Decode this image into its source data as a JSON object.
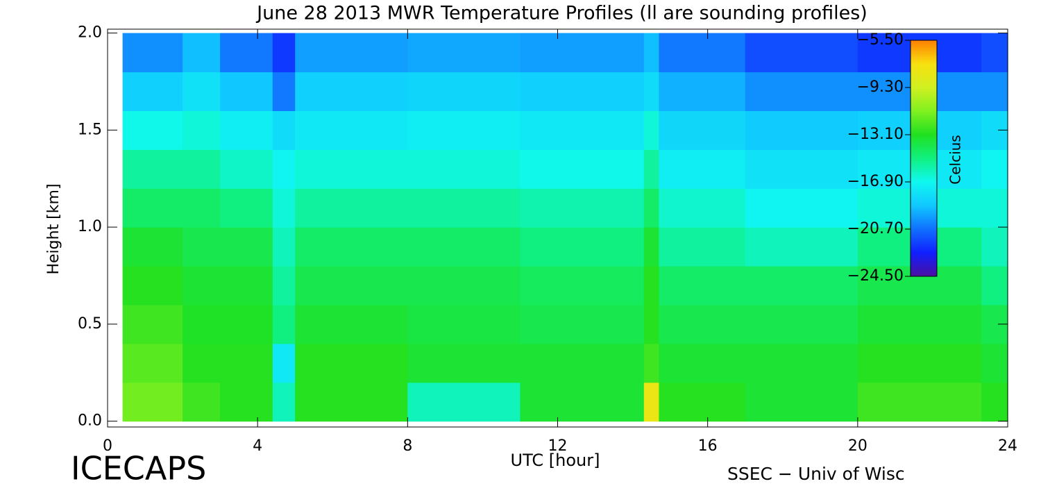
{
  "chart_data": {
    "type": "heatmap",
    "title": "June 28 2013 MWR Temperature Profiles (ll are sounding profiles)",
    "xlabel": "UTC [hour]",
    "ylabel": "Height [km]",
    "colorbar_label": "Celcius",
    "footer_left": "ICECAPS",
    "footer_right": "SSEC − Univ of Wisc",
    "xlim": [
      0,
      24
    ],
    "xticks": [
      0,
      4,
      8,
      12,
      16,
      20,
      24
    ],
    "ylim": [
      -0.03,
      2.02
    ],
    "yticks": [
      {
        "value": 0,
        "label": "0.0"
      },
      {
        "value": 0.5,
        "label": "0.5"
      },
      {
        "value": 1,
        "label": "1.0"
      },
      {
        "value": 1.5,
        "label": "1.5"
      },
      {
        "value": 2,
        "label": "2.0"
      }
    ],
    "zlim": [
      -24.5,
      -5.5
    ],
    "zticks": [
      {
        "value": -5.5,
        "label": "−5.50"
      },
      {
        "value": -9.3,
        "label": "−9.30"
      },
      {
        "value": -13.1,
        "label": "−13.10"
      },
      {
        "value": -16.9,
        "label": "−16.90"
      },
      {
        "value": -20.7,
        "label": "−20.70"
      },
      {
        "value": -24.5,
        "label": "−24.50"
      }
    ],
    "colorscale": [
      [
        -24.5,
        "#4b0fa0"
      ],
      [
        -22.6,
        "#1020ff"
      ],
      [
        -20.7,
        "#1070ff"
      ],
      [
        -18.8,
        "#10c8ff"
      ],
      [
        -16.9,
        "#10f8f0"
      ],
      [
        -15.0,
        "#10f080"
      ],
      [
        -13.1,
        "#20e020"
      ],
      [
        -11.2,
        "#80f020"
      ],
      [
        -9.3,
        "#d0f020"
      ],
      [
        -7.4,
        "#f8e010"
      ],
      [
        -5.5,
        "#ff8000"
      ]
    ],
    "xbins": [
      0.4,
      2,
      3,
      4.4,
      5,
      8,
      11,
      14.3,
      14.7,
      17,
      20,
      23.3,
      24
    ],
    "ybins": [
      0,
      0.2,
      0.4,
      0.6,
      0.8,
      1.0,
      1.2,
      1.4,
      1.6,
      1.8,
      2.0
    ],
    "z": [
      [
        -11.5,
        -12.5,
        -13,
        -16,
        -13,
        -16,
        -13.5,
        -8,
        -13,
        -13.5,
        -12.5,
        -13
      ],
      [
        -12,
        -13,
        -13,
        -17.5,
        -13,
        -13.5,
        -13.5,
        -12.5,
        -13.5,
        -13.5,
        -13,
        -13.5
      ],
      [
        -12.5,
        -13.2,
        -13.2,
        -15,
        -13.5,
        -13.8,
        -14,
        -13,
        -14,
        -14,
        -13.5,
        -14
      ],
      [
        -13,
        -13.5,
        -13.5,
        -15.5,
        -14,
        -14,
        -14.3,
        -13,
        -14.5,
        -14.5,
        -14,
        -15
      ],
      [
        -13.5,
        -14,
        -14,
        -16,
        -14.5,
        -14.5,
        -15,
        -13.5,
        -15.5,
        -16,
        -15,
        -16
      ],
      [
        -14.5,
        -14.5,
        -15,
        -16.5,
        -15.5,
        -15.5,
        -15.8,
        -14.5,
        -16.3,
        -17,
        -16.5,
        -16.5
      ],
      [
        -15.5,
        -15.5,
        -16.2,
        -17,
        -16.5,
        -16.5,
        -16.8,
        -15.5,
        -17.3,
        -17.8,
        -17.5,
        -17
      ],
      [
        -16.8,
        -16.5,
        -17.3,
        -18,
        -17.5,
        -17.3,
        -17.5,
        -16.5,
        -18.2,
        -18.7,
        -18.5,
        -18
      ],
      [
        -18.5,
        -17.8,
        -18.8,
        -20.5,
        -18.5,
        -18.3,
        -18.5,
        -18,
        -19.3,
        -20,
        -20,
        -20
      ],
      [
        -20,
        -19,
        -20.5,
        -22,
        -19.7,
        -19.5,
        -19.7,
        -19,
        -20.5,
        -21.5,
        -22,
        -21.5
      ]
    ]
  }
}
